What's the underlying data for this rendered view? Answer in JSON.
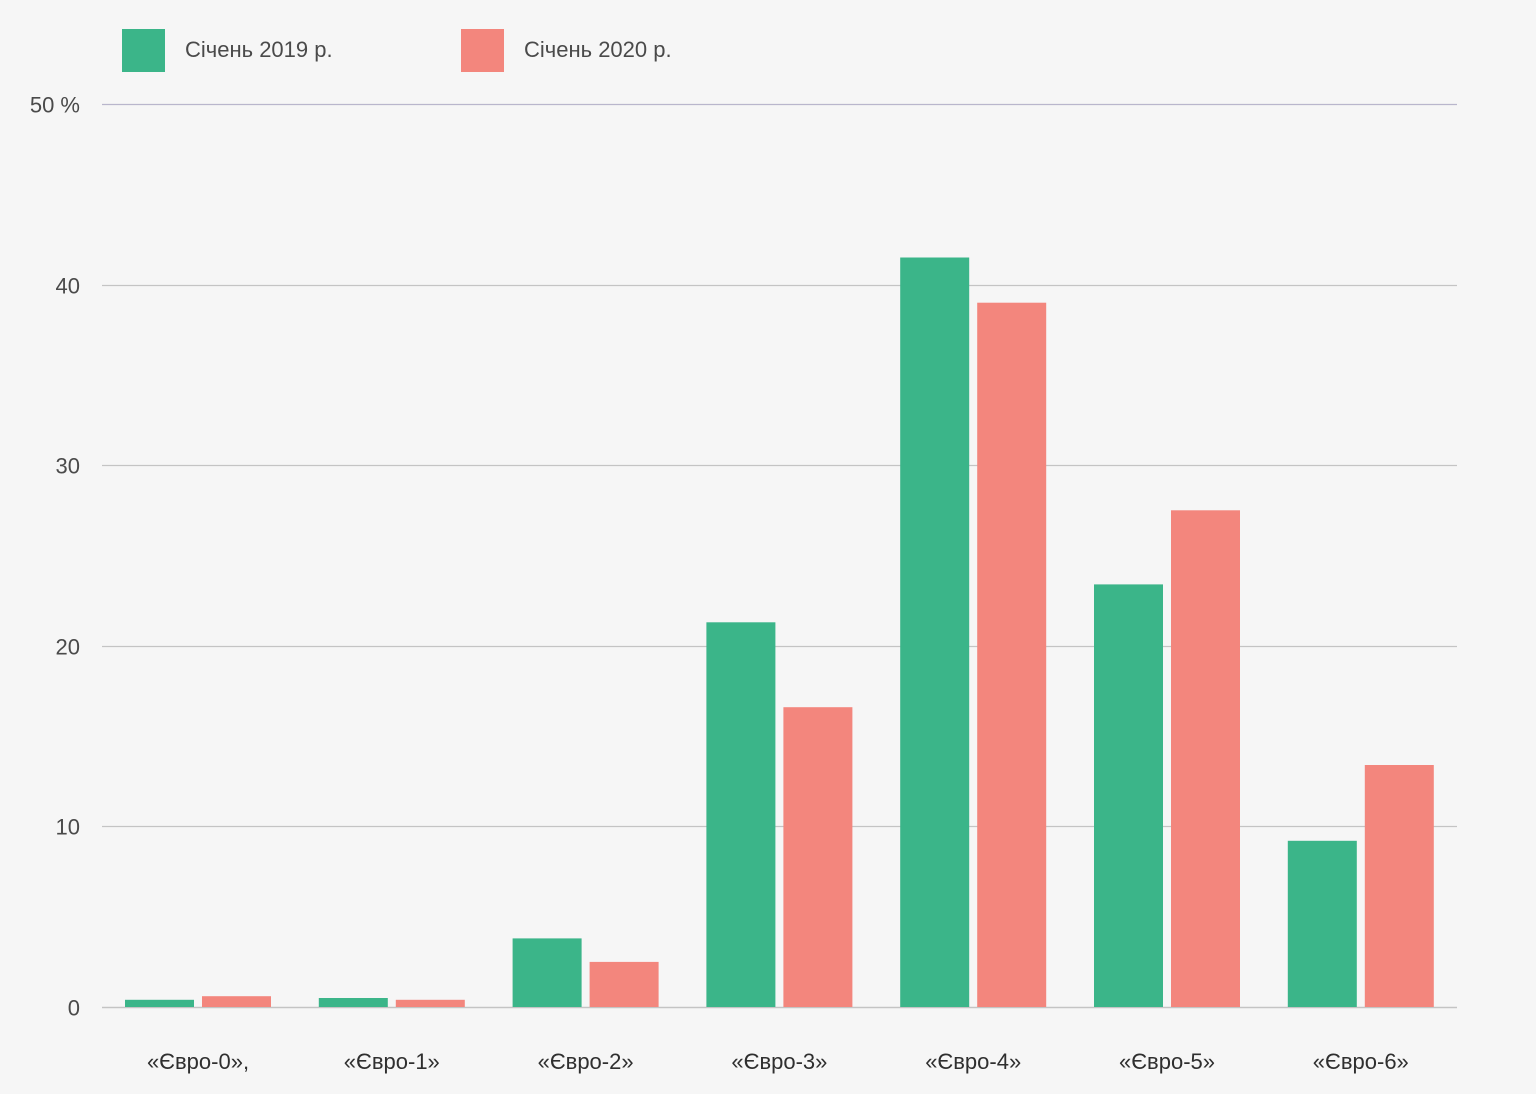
{
  "legend": {
    "series_0_label": "Січень 2019 р.",
    "series_1_label": "Січень 2020 р."
  },
  "colors": {
    "background": "#f6f6f6",
    "series_0": "#3bb589",
    "series_1": "#f3867d",
    "gridline": "#c4c4c4",
    "top_gridline": "#b9b6cc"
  },
  "chart_data": {
    "type": "bar",
    "categories": [
      "«Євро-0»,",
      "«Євро-1»",
      "«Євро-2»",
      "«Євро-3»",
      "«Євро-4»",
      "«Євро-5»",
      "«Євро-6»"
    ],
    "series": [
      {
        "name": "Січень 2019 р.",
        "values": [
          0.4,
          0.5,
          3.8,
          21.3,
          41.5,
          23.4,
          9.2
        ]
      },
      {
        "name": "Січень 2020 р.",
        "values": [
          0.6,
          0.4,
          2.5,
          16.6,
          39.0,
          27.5,
          13.4
        ]
      }
    ],
    "y_ticks": [
      "0",
      "10",
      "20",
      "30",
      "40",
      "50 %"
    ],
    "y_tick_values": [
      0,
      10,
      20,
      30,
      40,
      50
    ],
    "ylim": [
      0,
      50
    ],
    "grid": true,
    "legend_position": "top-left"
  }
}
